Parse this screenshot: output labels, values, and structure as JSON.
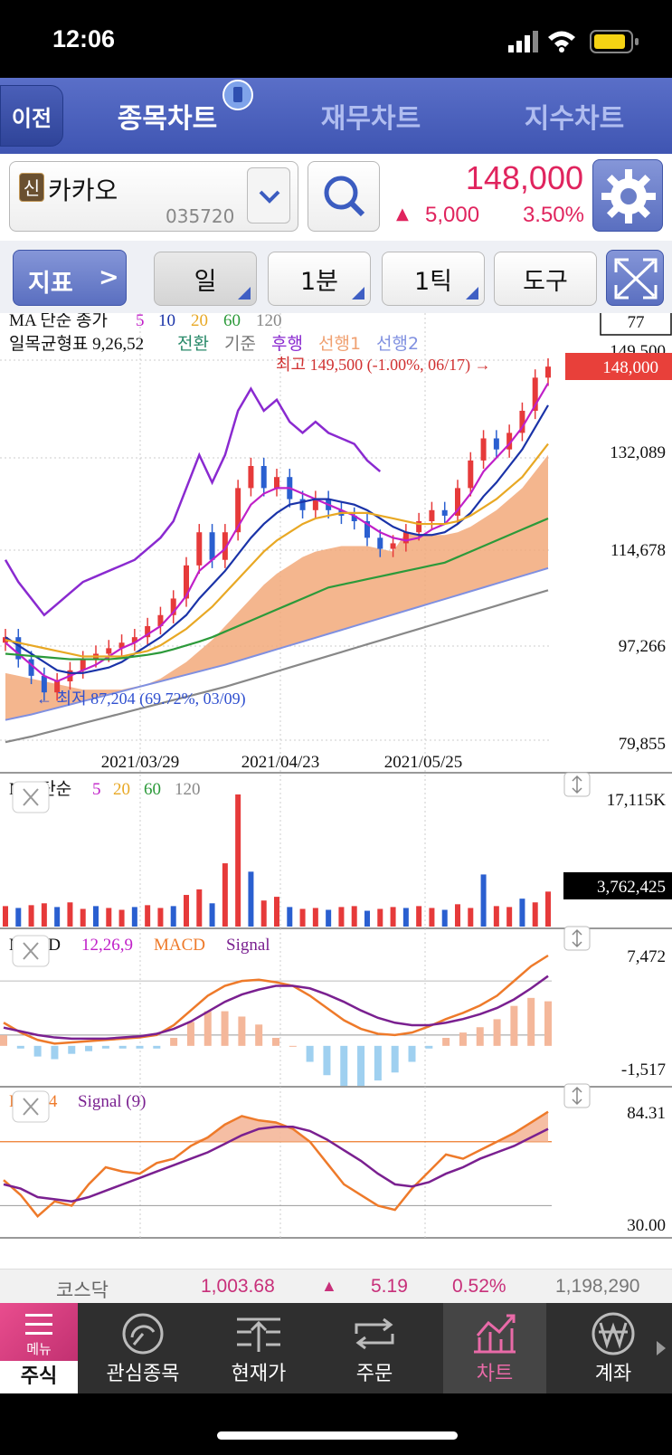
{
  "status": {
    "time": "12:06"
  },
  "nav": {
    "back": "이전",
    "tabs": [
      {
        "label": "종목차트",
        "active": true
      },
      {
        "label": "재무차트",
        "active": false
      },
      {
        "label": "지수차트",
        "active": false
      }
    ]
  },
  "stock": {
    "badge": "신",
    "name": "카카오",
    "code": "035720",
    "price": "148,000",
    "change": "5,000",
    "pct": "3.50%",
    "up_mark": "▲",
    "up_color": "#e0245e"
  },
  "toolbar": {
    "indicator": "지표",
    "indicator_arrow": ">",
    "period": "일",
    "minute": "1분",
    "tick": "1틱",
    "tools": "도구"
  },
  "main_chart": {
    "ma_title": "MA 단순 종가",
    "ma_periods": [
      "5",
      "10",
      "20",
      "60",
      "120"
    ],
    "ma_colors": [
      "#c020c8",
      "#1a33a8",
      "#e8a824",
      "#2c9a3a",
      "#888888"
    ],
    "ichimoku_title": "일목균형표 9,26,52",
    "ichimoku_lines": [
      "전환",
      "기준",
      "후행",
      "선행1",
      "선행2"
    ],
    "ichimoku_colors": [
      "#2a8a6a",
      "#777777",
      "#8a2ad0",
      "#f0a070",
      "#8090e0"
    ],
    "count_box": "77",
    "high_note": "최고 149,500 (-1.00%, 06/17) →",
    "low_note": "← 최저 87,204 (69.72%, 03/09)",
    "price_tag": "148,000",
    "y_labels": [
      "149,500",
      "132,089",
      "114,678",
      "97,266",
      "79,855"
    ],
    "x_labels": [
      "2021/03/29",
      "2021/04/23",
      "2021/05/25"
    ]
  },
  "volume": {
    "title": "MA 단순",
    "periods": [
      "5",
      "20",
      "60",
      "120"
    ],
    "period_colors": [
      "#c020c8",
      "#e8a824",
      "#2c9a3a",
      "#888888"
    ],
    "max": "17,115K",
    "current": "3,762,425"
  },
  "macd": {
    "title": "MACD",
    "params": "12,26,9",
    "macd_label": "MACD",
    "signal_label": "Signal",
    "max": "7,472",
    "min": "-1,517"
  },
  "rsi": {
    "title": "RSI 14",
    "signal_label": "Signal (9)",
    "max": "84.31",
    "min": "30.00"
  },
  "market": {
    "name": "코스닥",
    "value": "1,003.68",
    "up_mark": "▲",
    "change": "5.19",
    "pct": "0.52%",
    "volume": "1,198,290"
  },
  "bottom_nav": {
    "menu": "메뉴",
    "items": [
      "주식",
      "관심종목",
      "현재가",
      "주문",
      "차트",
      "계좌"
    ]
  },
  "chart_data": [
    {
      "type": "line",
      "title": "MA 단순 종가",
      "x_labels": [
        "2021/03/29",
        "2021/04/23",
        "2021/05/25"
      ],
      "ylim": [
        79855,
        149500
      ],
      "series": [
        {
          "name": "close",
          "values": [
            99000,
            95000,
            92000,
            89000,
            91000,
            93000,
            95000,
            96000,
            97000,
            98000,
            99000,
            101000,
            103000,
            106000,
            112000,
            118000,
            113000,
            118000,
            126000,
            130000,
            126000,
            128000,
            124000,
            122000,
            124000,
            122000,
            121000,
            120000,
            117000,
            115000,
            116000,
            118000,
            120000,
            122000,
            121000,
            126000,
            131000,
            135000,
            133000,
            136000,
            140000,
            146000,
            148000
          ]
        },
        {
          "name": "5",
          "values": [
            98000,
            96000,
            94000,
            92000,
            91000,
            92000,
            93000,
            94000,
            95500,
            97000,
            98000,
            99500,
            101000,
            103500,
            106500,
            111000,
            113000,
            115000,
            119000,
            123000,
            125000,
            126000,
            126000,
            125000,
            124000,
            123000,
            122000,
            121000,
            119500,
            118000,
            117000,
            116500,
            117000,
            118500,
            119500,
            122000,
            125000,
            129000,
            131500,
            134000,
            137000,
            141000,
            145000
          ]
        },
        {
          "name": "10",
          "values": [
            99000,
            97500,
            96000,
            94500,
            93000,
            92500,
            92500,
            93000,
            93500,
            94500,
            96000,
            97500,
            99000,
            101000,
            103000,
            106000,
            108500,
            111000,
            114000,
            117000,
            119500,
            121500,
            123000,
            123500,
            124000,
            124000,
            123500,
            123000,
            122000,
            120500,
            119000,
            118000,
            117500,
            117500,
            118000,
            119500,
            121500,
            124500,
            127000,
            130000,
            133000,
            137000,
            141000
          ]
        },
        {
          "name": "20",
          "values": [
            98500,
            98000,
            97500,
            97000,
            96500,
            96000,
            95500,
            95500,
            95500,
            95500,
            96000,
            96500,
            97500,
            99000,
            100500,
            102500,
            104500,
            107000,
            109500,
            112000,
            114500,
            116500,
            118000,
            119500,
            120500,
            121000,
            121500,
            121500,
            121500,
            121000,
            120500,
            120000,
            119500,
            119500,
            119500,
            120000,
            121000,
            122500,
            124000,
            126000,
            128000,
            131000,
            134000
          ]
        },
        {
          "name": "60",
          "values": [
            96000,
            95800,
            95600,
            95400,
            95200,
            95000,
            95000,
            95000,
            95000,
            95200,
            95500,
            95800,
            96200,
            96800,
            97500,
            98200,
            99000,
            100000,
            101000,
            102000,
            103000,
            104000,
            105000,
            106000,
            107000,
            108000,
            108500,
            109000,
            109500,
            110000,
            110500,
            111000,
            111500,
            112000,
            112500,
            113500,
            114500,
            115500,
            116500,
            117500,
            118500,
            119500,
            120500
          ]
        },
        {
          "name": "120",
          "values": [
            80000,
            80500,
            81000,
            81600,
            82200,
            82800,
            83400,
            84000,
            84600,
            85200,
            85800,
            86400,
            87000,
            87600,
            88200,
            88800,
            89400,
            90000,
            90700,
            91400,
            92100,
            92800,
            93500,
            94200,
            94900,
            95600,
            96300,
            97000,
            97700,
            98400,
            99100,
            99800,
            100500,
            101200,
            101900,
            102600,
            103300,
            104000,
            104700,
            105400,
            106100,
            106800,
            107500
          ]
        }
      ]
    },
    {
      "type": "bar",
      "title": "MA 단순",
      "ylim": [
        0,
        17115000
      ],
      "series": [
        {
          "name": "volume",
          "values": [
            2.2,
            2.0,
            2.3,
            2.5,
            2.1,
            2.6,
            1.9,
            2.2,
            2.0,
            1.8,
            2.1,
            2.3,
            2.0,
            2.2,
            3.4,
            4.0,
            2.5,
            6.8,
            14.2,
            5.9,
            2.8,
            3.2,
            2.1,
            1.9,
            2.0,
            1.8,
            2.1,
            2.2,
            1.7,
            1.9,
            2.1,
            2.0,
            2.2,
            2.0,
            1.8,
            2.4,
            2.0,
            5.6,
            2.2,
            2.1,
            3.0,
            2.6,
            3.76
          ]
        }
      ]
    },
    {
      "type": "line",
      "title": "MACD",
      "ylim": [
        -1517,
        7472
      ],
      "series": [
        {
          "name": "MACD",
          "values": [
            2000,
            1200,
            600,
            300,
            400,
            500,
            600,
            700,
            800,
            1000,
            1800,
            3000,
            4200,
            5000,
            5400,
            5500,
            5300,
            5000,
            4200,
            3200,
            2200,
            1500,
            1100,
            1000,
            1200,
            1700,
            2300,
            2800,
            3400,
            4200,
            5400,
            6600,
            7472
          ]
        },
        {
          "name": "Signal",
          "values": [
            1600,
            1300,
            1000,
            800,
            700,
            700,
            700,
            800,
            900,
            1100,
            1500,
            2100,
            2900,
            3700,
            4300,
            4700,
            5000,
            5000,
            4800,
            4300,
            3700,
            3000,
            2400,
            2000,
            1800,
            1800,
            2000,
            2300,
            2700,
            3200,
            3900,
            4800,
            5800
          ]
        }
      ]
    },
    {
      "type": "line",
      "title": "RSI 14",
      "ylim": [
        30,
        84.31
      ],
      "series": [
        {
          "name": "RSI",
          "values": [
            52,
            45,
            35,
            42,
            40,
            50,
            58,
            56,
            55,
            60,
            62,
            68,
            72,
            78,
            82,
            80,
            79,
            76,
            70,
            60,
            50,
            45,
            40,
            38,
            48,
            56,
            64,
            62,
            66,
            70,
            74,
            79,
            84
          ]
        },
        {
          "name": "Signal (9)",
          "values": [
            50,
            48,
            44,
            43,
            42,
            44,
            47,
            50,
            53,
            56,
            59,
            62,
            65,
            69,
            73,
            76,
            77,
            77,
            75,
            71,
            66,
            61,
            55,
            50,
            49,
            51,
            55,
            58,
            62,
            65,
            68,
            72,
            76
          ]
        }
      ]
    }
  ]
}
